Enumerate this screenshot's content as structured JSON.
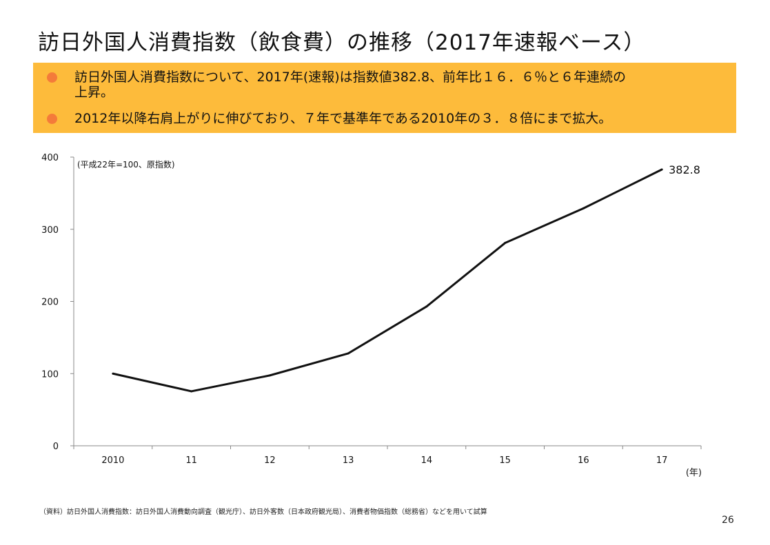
{
  "title": "訪日外国人消費指数（飲食費）の推移（2017年速報ベース）",
  "bullets": [
    {
      "line1": "訪日外国人消費指数について、2017年(速報)は指数値382.8、前年比１６．６％と６年連続の",
      "line2": "上昇。"
    },
    {
      "line1": "2012年以降右肩上がりに伸びており、７年で基準年である2010年の３．８倍にまで拡大。"
    }
  ],
  "colors": {
    "banner": "#FDBB3B",
    "bullet": "#F47B3A",
    "line": "#111111"
  },
  "chart_data": {
    "type": "line",
    "categories": [
      "2010",
      "11",
      "12",
      "13",
      "14",
      "15",
      "16",
      "17"
    ],
    "values": [
      100,
      75.5,
      97.5,
      128,
      193,
      281,
      329,
      382.8
    ],
    "unit_note": "(平成22年=100、原指数)",
    "xlabel": "(年)",
    "ylabel": "",
    "ylim": [
      0,
      400
    ],
    "yticks": [
      "0",
      "100",
      "200",
      "300",
      "400"
    ],
    "data_label": "382.8",
    "grid": false
  },
  "footnote": "（資料）訪日外国人消費指数：訪日外国人消費動向調査（観光庁）、訪日外客数（日本政府観光局）、消費者物価指数（総務省）などを用いて試算",
  "page_number": "26"
}
